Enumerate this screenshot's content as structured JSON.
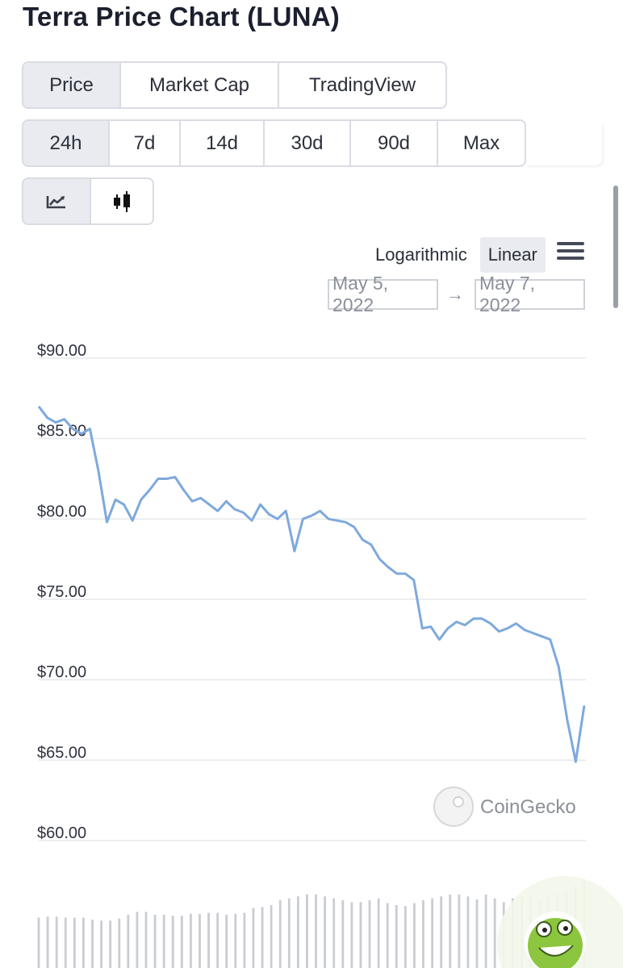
{
  "page": {
    "title": "Terra Price Chart (LUNA)"
  },
  "chart_tabs": [
    {
      "label": "Price",
      "active": true
    },
    {
      "label": "Market Cap",
      "active": false
    },
    {
      "label": "TradingView",
      "active": false
    }
  ],
  "ranges": [
    {
      "label": "24h",
      "active": true
    },
    {
      "label": "7d",
      "active": false
    },
    {
      "label": "14d",
      "active": false
    },
    {
      "label": "30d",
      "active": false
    },
    {
      "label": "90d",
      "active": false
    },
    {
      "label": "Max",
      "active": false
    }
  ],
  "chart_style": [
    {
      "icon": "line-chart-icon",
      "active": true
    },
    {
      "icon": "candlestick-icon",
      "active": false
    }
  ],
  "scale": {
    "logarithmic": "Logarithmic",
    "linear": "Linear",
    "selected": "Linear"
  },
  "date_range": {
    "from": "May 5, 2022",
    "arrow": "→",
    "to": "May 7, 2022"
  },
  "watermark": "CoinGecko",
  "colors": {
    "line": "#7ea9dc",
    "volume": "#c9ccd2",
    "grid": "#e6e8ec",
    "active_bg": "#e9ebf0"
  },
  "chart_data": {
    "type": "line",
    "title": "",
    "xlabel": "",
    "ylabel": "",
    "y_tick_labels": [
      "$90.00",
      "$85.00",
      "$80.00",
      "$75.00",
      "$70.00",
      "$65.00",
      "$60.00"
    ],
    "y_ticks": [
      90,
      85,
      80,
      75,
      70,
      65,
      60
    ],
    "ylim": [
      60,
      90
    ],
    "grid": true,
    "legend": "none",
    "series": [
      {
        "values": [
          87.0,
          86.3,
          86.0,
          86.2,
          85.6,
          85.3,
          85.6,
          83.0,
          79.8,
          81.2,
          80.9,
          79.9,
          81.2,
          81.8,
          82.5,
          82.5,
          82.6,
          81.8,
          81.1,
          81.3,
          80.9,
          80.5,
          81.1,
          80.6,
          80.4,
          79.9,
          80.9,
          80.3,
          80.0,
          80.5,
          78.0,
          80.0,
          80.2,
          80.5,
          80.0,
          79.9,
          79.8,
          79.5,
          78.7,
          78.4,
          77.5,
          77.0,
          76.6,
          76.6,
          76.2,
          73.2,
          73.3,
          72.5,
          73.2,
          73.6,
          73.4,
          73.8,
          73.8,
          73.5,
          73.0,
          73.2,
          73.5,
          73.1,
          72.9,
          72.7,
          72.5,
          70.8,
          67.5,
          64.9,
          68.4
        ]
      }
    ],
    "volume": {
      "values": [
        0.52,
        0.53,
        0.53,
        0.52,
        0.52,
        0.52,
        0.5,
        0.49,
        0.49,
        0.51,
        0.55,
        0.58,
        0.58,
        0.55,
        0.55,
        0.54,
        0.54,
        0.56,
        0.56,
        0.57,
        0.57,
        0.55,
        0.56,
        0.57,
        0.62,
        0.63,
        0.65,
        0.7,
        0.72,
        0.74,
        0.76,
        0.76,
        0.74,
        0.72,
        0.7,
        0.68,
        0.68,
        0.7,
        0.72,
        0.67,
        0.65,
        0.64,
        0.67,
        0.7,
        0.72,
        0.74,
        0.76,
        0.76,
        0.74,
        0.71,
        0.76,
        0.72,
        0.68,
        0.72,
        0.74,
        0.76,
        0.7,
        0.74,
        0.78,
        0.8,
        0.85,
        0.9
      ]
    }
  }
}
